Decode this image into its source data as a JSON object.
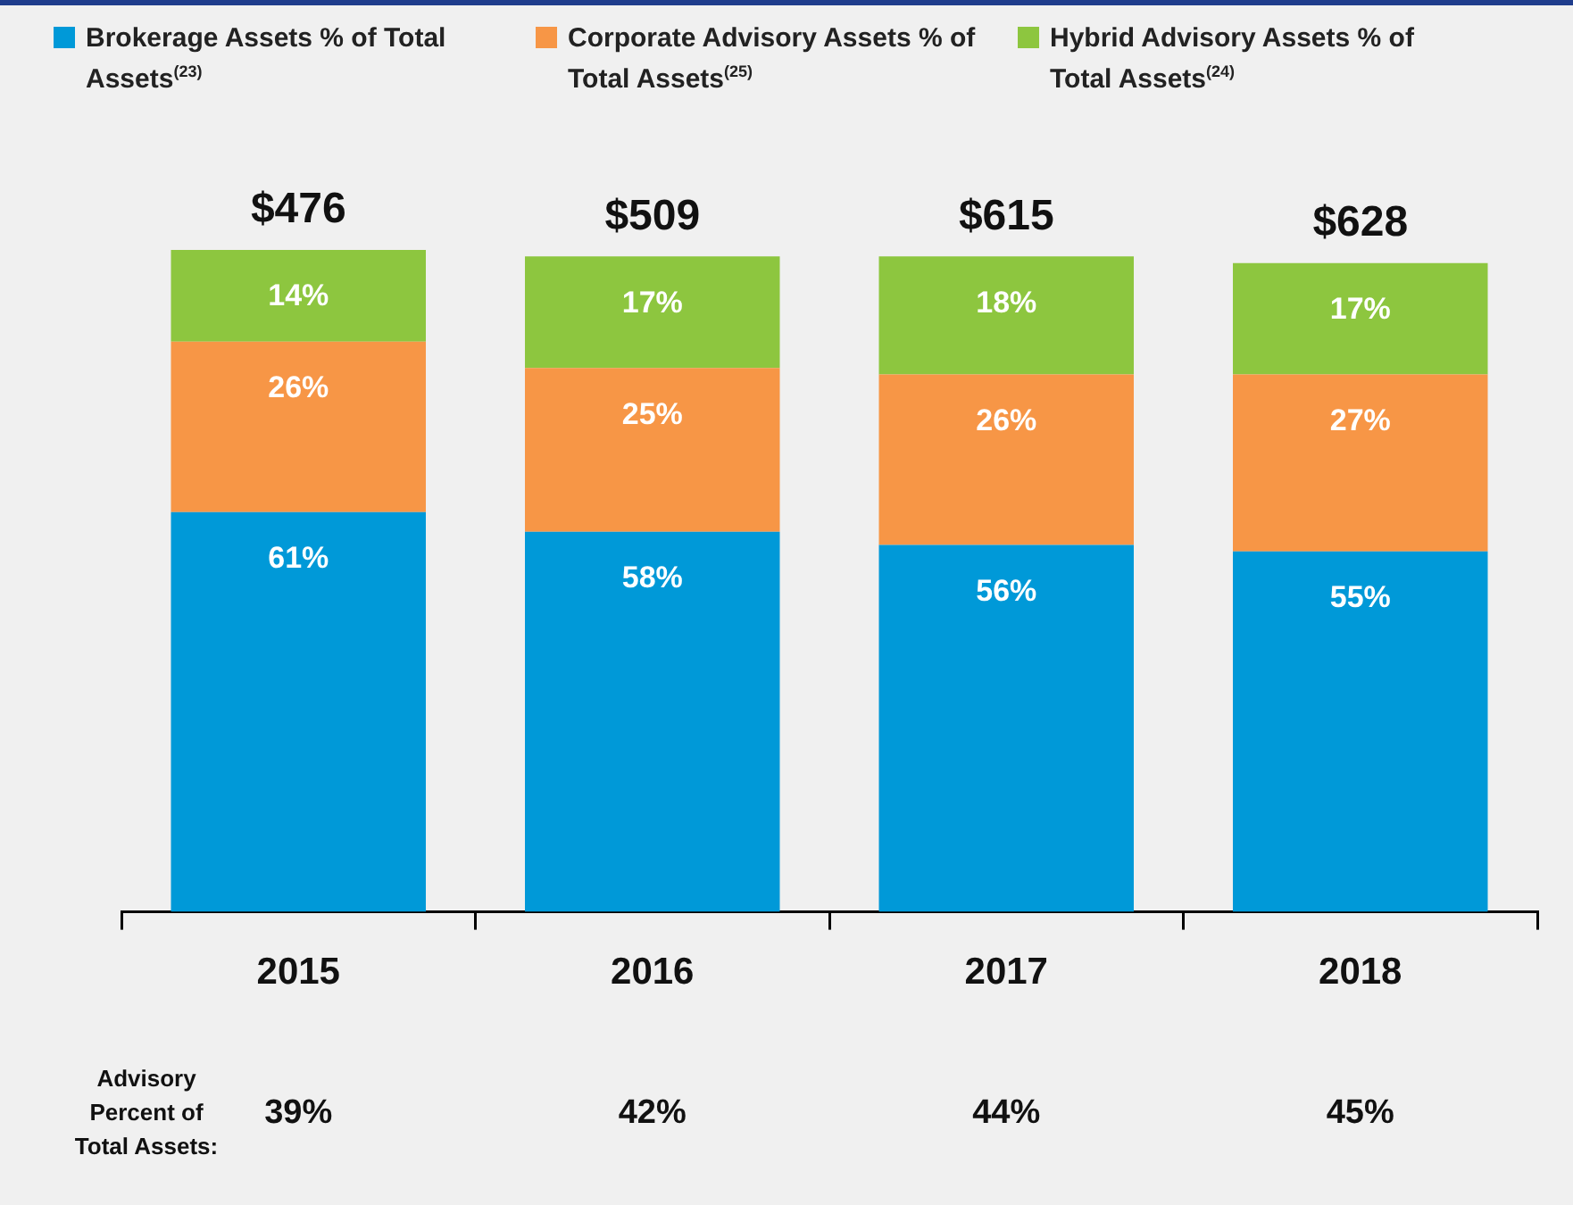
{
  "chart_data": {
    "type": "bar",
    "stacked": true,
    "categories": [
      "2015",
      "2016",
      "2017",
      "2018"
    ],
    "series": [
      {
        "name": "Brokerage Assets % of Total Assets$^{(23)}$",
        "color": "#0099d8",
        "values": [
          61,
          58,
          56,
          55
        ],
        "value_labels": [
          "61%",
          "58%",
          "56%",
          "55%"
        ]
      },
      {
        "name": "Corporate Advisory Assets % of Total Assets$^{(25)}$",
        "color": "#f79646",
        "values": [
          26,
          25,
          26,
          27
        ],
        "value_labels": [
          "26%",
          "25%",
          "26%",
          "27%"
        ]
      },
      {
        "name": "Hybrid Advisory Assets % of Total Assets$^{(24)}$",
        "color": "#8dc63f",
        "values": [
          14,
          17,
          18,
          17
        ],
        "value_labels": [
          "14%",
          "17%",
          "18%",
          "17%"
        ]
      }
    ],
    "legend": "top",
    "grid": false,
    "annotations": [
      "$476",
      "$509",
      "$615",
      "$628",
      "Advisory Percent of Total Assets:",
      "39%",
      "42%",
      "44%",
      "45%"
    ]
  }
}
